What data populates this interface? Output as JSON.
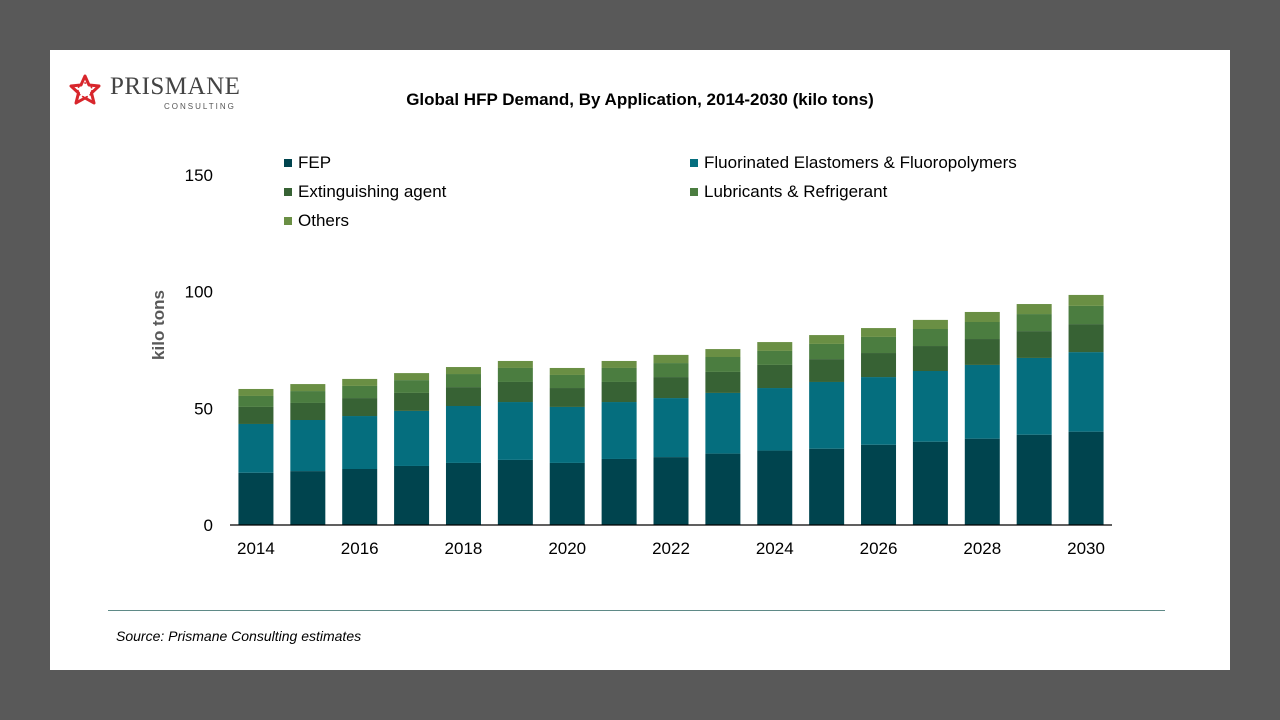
{
  "logo": {
    "name": "PRISMANE",
    "sub": "CONSULTING"
  },
  "source": "Source: Prismane Consulting estimates",
  "chart_data": {
    "type": "bar",
    "stacked": true,
    "title": "Global HFP Demand, By Application,  2014-2030 (kilo tons)",
    "xlabel": "",
    "ylabel": "kilo tons",
    "ylim": [
      0,
      150
    ],
    "yticks": [
      0,
      50,
      100,
      150
    ],
    "grid": false,
    "legend_position": "top",
    "categories": [
      "2014",
      "2015",
      "2016",
      "2017",
      "2018",
      "2019",
      "2020",
      "2021",
      "2022",
      "2023",
      "2024",
      "2025",
      "2026",
      "2027",
      "2028",
      "2029",
      "2030"
    ],
    "xtick_labels": [
      "2014",
      "",
      "2016",
      "",
      "2018",
      "",
      "2020",
      "",
      "2022",
      "",
      "2024",
      "",
      "2026",
      "",
      "2028",
      "",
      "2030"
    ],
    "series": [
      {
        "name": "FEP",
        "color": "#00444e",
        "values": [
          22.4,
          23.1,
          24.0,
          25.3,
          26.6,
          27.9,
          26.6,
          28.3,
          29.1,
          30.6,
          31.9,
          32.7,
          34.4,
          35.7,
          37.0,
          38.7,
          40.0
        ]
      },
      {
        "name": "Fluorinated Elastomers & Fluoropolymers",
        "color": "#056e7e",
        "values": [
          20.9,
          21.9,
          22.7,
          23.6,
          24.4,
          24.8,
          24.0,
          24.4,
          25.3,
          26.0,
          26.8,
          28.6,
          29.0,
          30.3,
          31.6,
          32.9,
          34.1
        ]
      },
      {
        "name": "Extinguishing agent",
        "color": "#376234",
        "values": [
          7.3,
          7.3,
          7.7,
          7.7,
          8.1,
          8.6,
          8.1,
          8.6,
          9.0,
          9.0,
          9.9,
          9.8,
          10.3,
          10.7,
          11.1,
          11.5,
          12.0
        ]
      },
      {
        "name": "Lubricants & Refrigerant",
        "color": "#4b7d40",
        "values": [
          4.7,
          5.1,
          5.2,
          5.5,
          5.6,
          6.0,
          5.6,
          6.0,
          6.0,
          6.4,
          6.0,
          6.5,
          6.9,
          7.3,
          7.3,
          7.3,
          7.8
        ]
      },
      {
        "name": "Others",
        "color": "#6a8f44",
        "values": [
          3.0,
          3.0,
          3.0,
          3.0,
          3.0,
          3.0,
          3.0,
          3.0,
          3.5,
          3.4,
          3.8,
          3.8,
          3.8,
          3.9,
          4.3,
          4.3,
          4.7
        ]
      }
    ]
  }
}
